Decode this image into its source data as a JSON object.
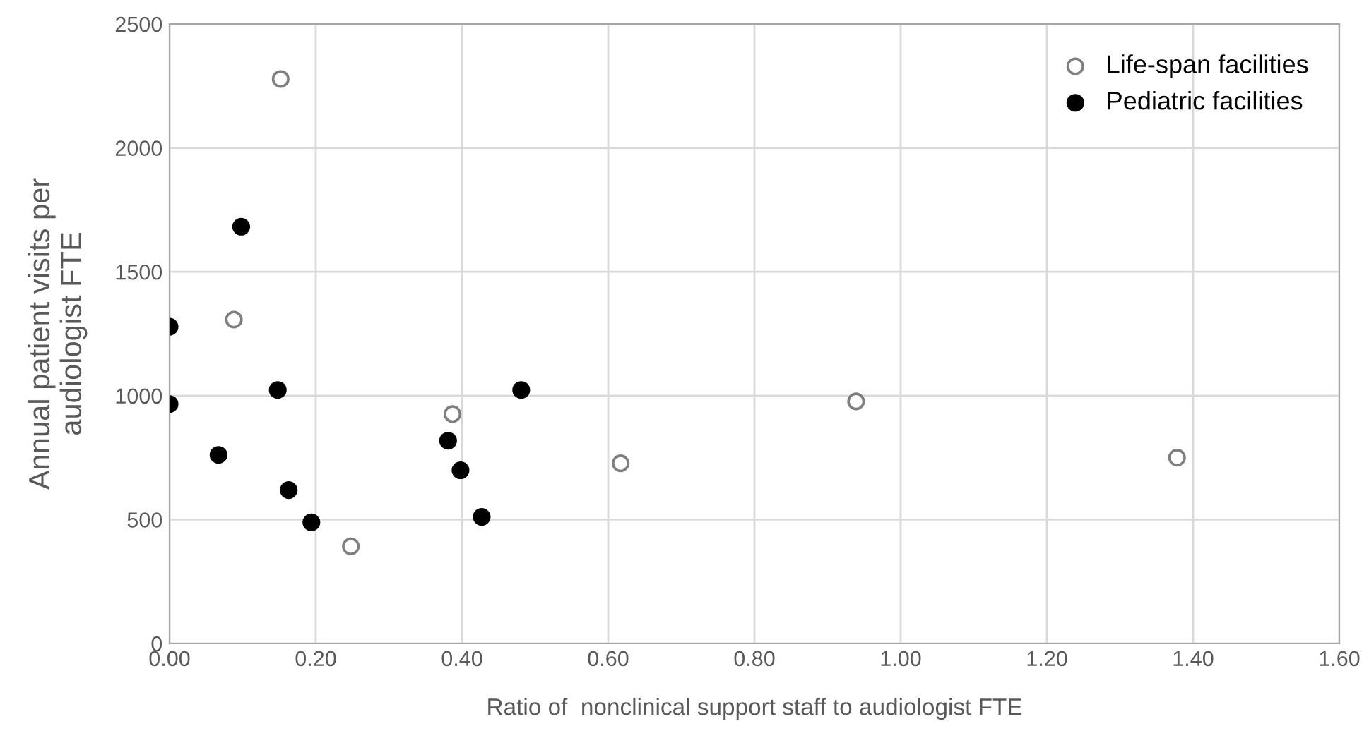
{
  "chart_data": {
    "type": "scatter",
    "xlabel": "Ratio of  nonclinical support staff to audiologist FTE",
    "ylabel": "Annual patient visits per\naudiologist FTE",
    "series": [
      {
        "name": "Life-span facilities",
        "color": "#ffffff",
        "x": [
          0.152,
          0.088,
          0.387,
          0.248,
          0.617,
          0.939,
          1.378
        ],
        "values": [
          2278,
          1307,
          926,
          392,
          727,
          977,
          750
        ]
      },
      {
        "name": "Pediatric facilities",
        "color": "#000000",
        "x": [
          0.098,
          0,
          0,
          0.148,
          0.067,
          0.163,
          0.194,
          0.381,
          0.398,
          0.427,
          0.481
        ],
        "values": [
          1682,
          1278,
          966,
          1023,
          761,
          619,
          489,
          818,
          699,
          511,
          1023
        ]
      }
    ],
    "xlim": [
      0,
      1.6
    ],
    "xticks": [
      {
        "value": 0,
        "label": "0.00"
      },
      {
        "value": 0.2,
        "label": "0.20"
      },
      {
        "value": 0.4,
        "label": "0.40"
      },
      {
        "value": 0.6,
        "label": "0.60"
      },
      {
        "value": 0.8,
        "label": "0.80"
      },
      {
        "value": 1.0,
        "label": "1.00"
      },
      {
        "value": 1.2,
        "label": "1.20"
      },
      {
        "value": 1.4,
        "label": "1.40"
      },
      {
        "value": 1.6,
        "label": "1.60"
      }
    ],
    "ylim": [
      0,
      2500
    ],
    "yticks": [
      0,
      500,
      1000,
      1500,
      2000,
      2500
    ],
    "grid": true,
    "legend": "top right",
    "marker": "circle"
  }
}
